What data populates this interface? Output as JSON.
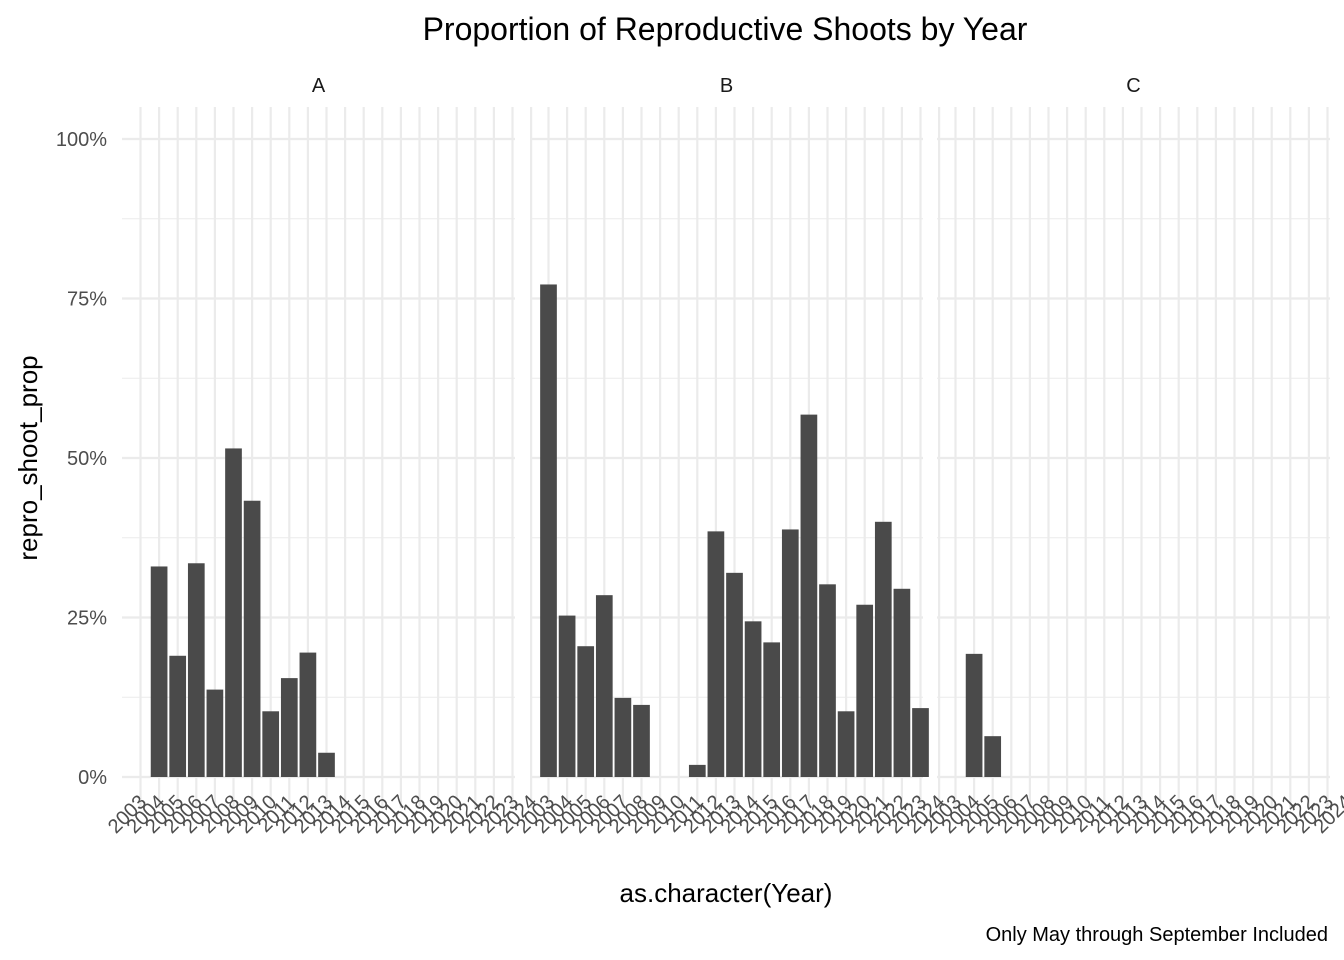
{
  "chart_data": {
    "type": "bar",
    "title": "Proportion of Reproductive Shoots by Year",
    "xlabel": "as.character(Year)",
    "ylabel": "repro_shoot_prop",
    "caption": "Only May through September Included",
    "ylim": [
      0,
      1
    ],
    "yticks": [
      0,
      0.25,
      0.5,
      0.75,
      1.0
    ],
    "ytick_labels": [
      "0%",
      "25%",
      "50%",
      "75%",
      "100%"
    ],
    "grid": true,
    "legend": "none",
    "bar_color": "#4a4a4a",
    "categories": [
      "2003",
      "2004",
      "2005",
      "2006",
      "2007",
      "2008",
      "2009",
      "2010",
      "2011",
      "2012",
      "2013",
      "2014",
      "2015",
      "2016",
      "2017",
      "2018",
      "2019",
      "2020",
      "2021",
      "2022",
      "2023",
      "2024"
    ],
    "facets": [
      {
        "label": "A",
        "values": [
          null,
          0.33,
          0.19,
          0.335,
          0.137,
          0.515,
          0.433,
          0.103,
          0.155,
          0.195,
          0.038,
          null,
          null,
          null,
          null,
          null,
          null,
          null,
          null,
          null,
          null,
          null
        ]
      },
      {
        "label": "B",
        "values": [
          0.772,
          0.253,
          0.205,
          0.285,
          0.124,
          0.113,
          null,
          null,
          0.019,
          0.385,
          0.32,
          0.244,
          0.211,
          0.388,
          0.568,
          0.302,
          0.103,
          0.27,
          0.4,
          0.295,
          0.108,
          null
        ]
      },
      {
        "label": "C",
        "values": [
          null,
          0.193,
          0.064,
          null,
          null,
          null,
          null,
          null,
          null,
          null,
          null,
          null,
          null,
          null,
          null,
          null,
          null,
          null,
          null,
          null,
          null,
          null
        ]
      }
    ]
  }
}
